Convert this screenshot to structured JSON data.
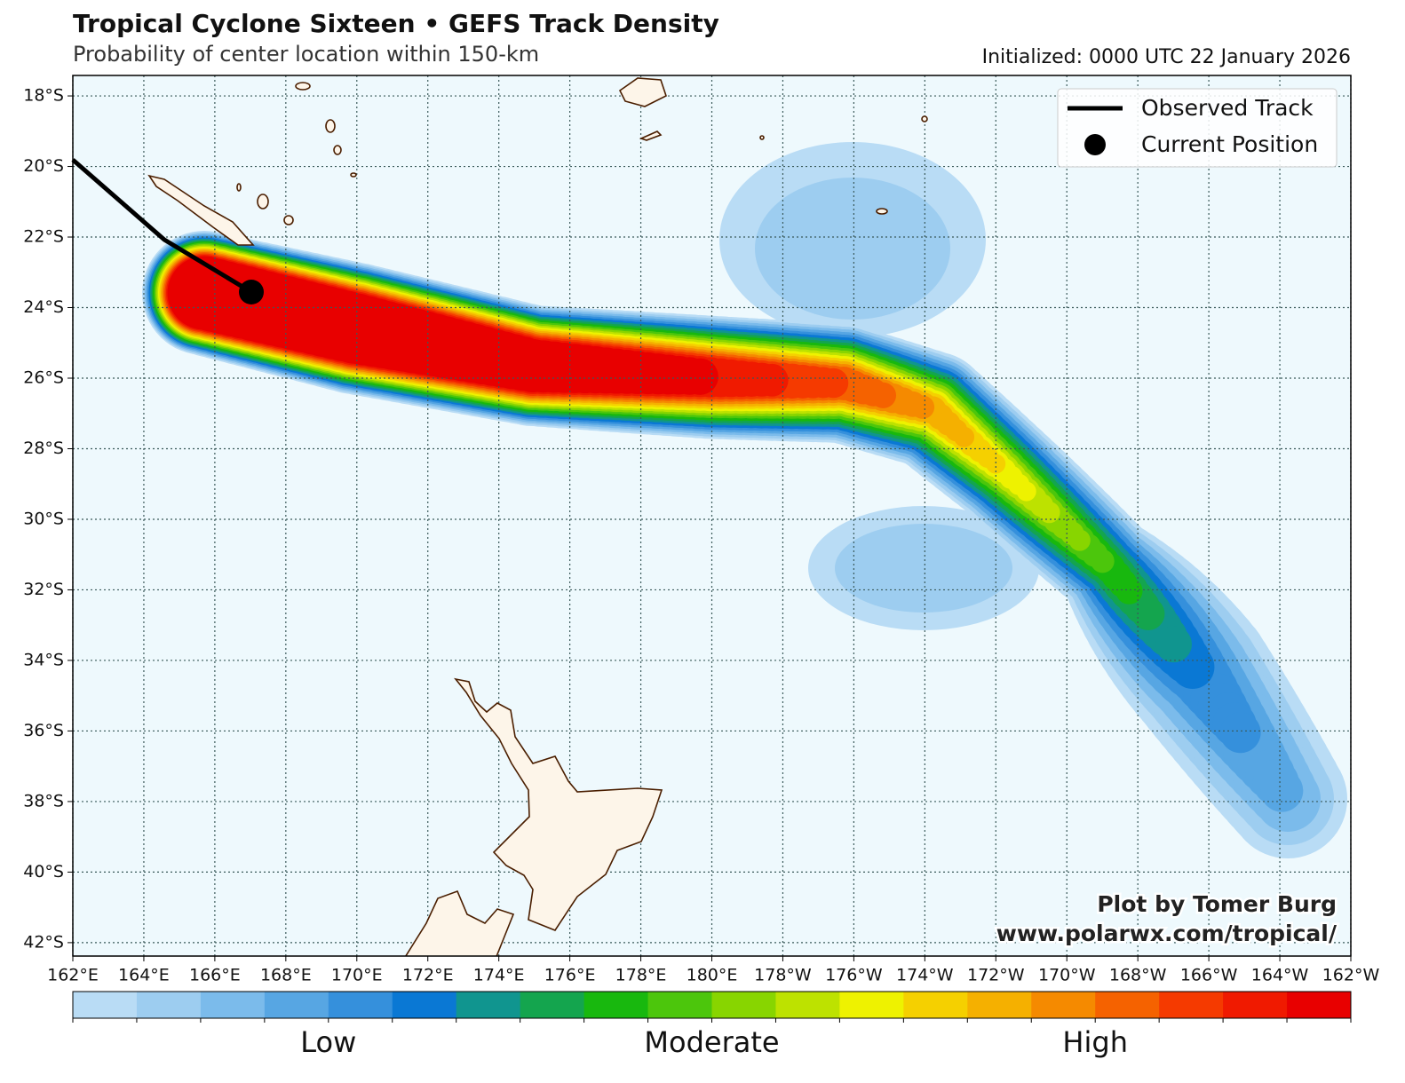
{
  "header": {
    "title": "Tropical Cyclone Sixteen • GEFS Track Density",
    "subtitle": "Probability of center location within 150-km",
    "initialized": "Initialized: 0000 UTC 22 January 2026"
  },
  "map": {
    "lon_range": [
      162,
      198
    ],
    "lat_range": [
      -17.42,
      -42.38
    ],
    "lon_ticks": [
      {
        "value": 162,
        "label": "162°E"
      },
      {
        "value": 164,
        "label": "164°E"
      },
      {
        "value": 166,
        "label": "166°E"
      },
      {
        "value": 168,
        "label": "168°E"
      },
      {
        "value": 170,
        "label": "170°E"
      },
      {
        "value": 172,
        "label": "172°E"
      },
      {
        "value": 174,
        "label": "174°E"
      },
      {
        "value": 176,
        "label": "176°E"
      },
      {
        "value": 178,
        "label": "178°E"
      },
      {
        "value": 180,
        "label": "180°E"
      },
      {
        "value": 182,
        "label": "178°W"
      },
      {
        "value": 184,
        "label": "176°W"
      },
      {
        "value": 186,
        "label": "174°W"
      },
      {
        "value": 188,
        "label": "172°W"
      },
      {
        "value": 190,
        "label": "170°W"
      },
      {
        "value": 192,
        "label": "168°W"
      },
      {
        "value": 194,
        "label": "166°W"
      },
      {
        "value": 196,
        "label": "164°W"
      },
      {
        "value": 198,
        "label": "162°W"
      }
    ],
    "lat_ticks": [
      {
        "value": -18,
        "label": "18°S"
      },
      {
        "value": -20,
        "label": "20°S"
      },
      {
        "value": -22,
        "label": "22°S"
      },
      {
        "value": -24,
        "label": "24°S"
      },
      {
        "value": -26,
        "label": "26°S"
      },
      {
        "value": -28,
        "label": "28°S"
      },
      {
        "value": -30,
        "label": "30°S"
      },
      {
        "value": -32,
        "label": "32°S"
      },
      {
        "value": -34,
        "label": "34°S"
      },
      {
        "value": -36,
        "label": "36°S"
      },
      {
        "value": -38,
        "label": "38°S"
      },
      {
        "value": -40,
        "label": "40°S"
      },
      {
        "value": -42,
        "label": "42°S"
      }
    ]
  },
  "legend": {
    "items": [
      "Observed Track",
      "Current Position"
    ]
  },
  "colorbar": {
    "colors": [
      "#b9dcf5",
      "#9dcdf0",
      "#7bbbeb",
      "#57a6e3",
      "#3590dc",
      "#0a78d4",
      "#10958f",
      "#14a54e",
      "#18b80e",
      "#4cc60c",
      "#88d500",
      "#bde200",
      "#eef200",
      "#f5d000",
      "#f5b000",
      "#f58a00",
      "#f56200",
      "#f53a00",
      "#f01a00",
      "#e80000"
    ],
    "labels": [
      "Low",
      "Moderate",
      "High"
    ]
  },
  "credit": {
    "lines": [
      "Plot by Tomer Burg",
      "www.polarwx.com/tropical/"
    ]
  }
}
